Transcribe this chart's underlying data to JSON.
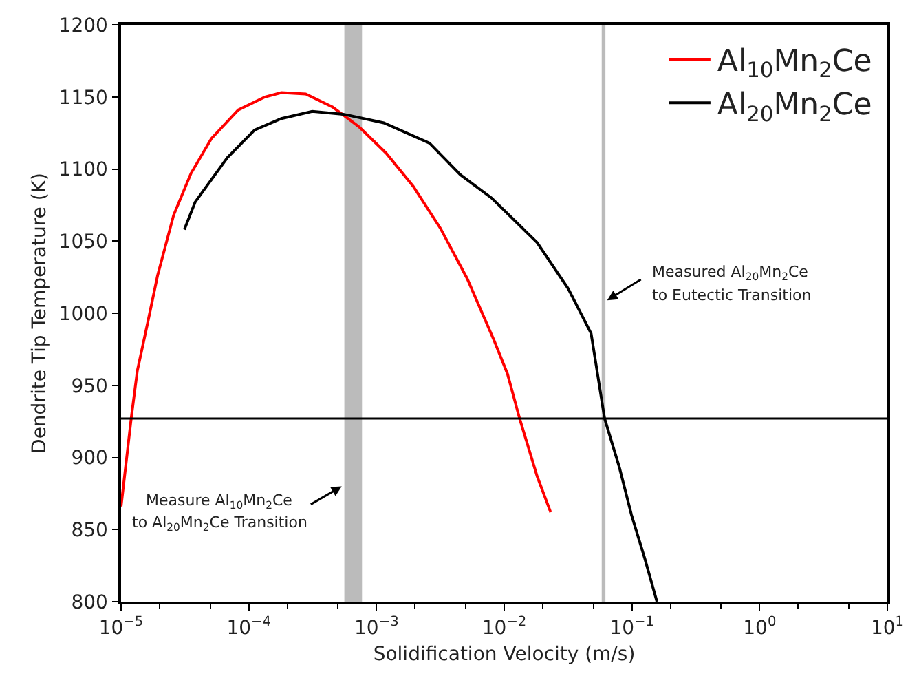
{
  "chart_data": {
    "type": "line",
    "xlabel": "Solidification Velocity (m/s)",
    "ylabel": "Dendrite Tip Temperature (K)",
    "log": "x",
    "xlim": [
      1e-05,
      10
    ],
    "xticks": [
      {
        "value": 1e-05,
        "label": "10$^{−5}$"
      },
      {
        "value": 0.0001,
        "label": "10$^{−4}$"
      },
      {
        "value": 0.001,
        "label": "10$^{−3}$"
      },
      {
        "value": 0.01,
        "label": "10$^{−2}$"
      },
      {
        "value": 0.1,
        "label": "10$^{−1}$"
      },
      {
        "value": 1,
        "label": "10$^{0}$"
      },
      {
        "value": 10,
        "label": "10$^{1}$"
      }
    ],
    "ylim": [
      800,
      1200
    ],
    "yticks": [
      800,
      850,
      900,
      950,
      1000,
      1050,
      1100,
      1150,
      1200
    ],
    "grid": false,
    "legend": "top right",
    "series": [
      {
        "name": "Al$_{10}$Mn$_{2}$Ce",
        "color": "#ff0000",
        "x": [
          1e-05,
          1.2e-05,
          1.34e-05,
          1.63e-05,
          1.93e-05,
          2.58e-05,
          3.53e-05,
          5.09e-05,
          8.27e-05,
          0.000134,
          0.00018,
          0.000279,
          0.000453,
          0.000735,
          0.00119,
          0.00194,
          0.00316,
          0.00513,
          0.00834,
          0.0106,
          0.0132,
          0.0181,
          0.0231
        ],
        "values": [
          866,
          927,
          960,
          995,
          1026,
          1068,
          1097,
          1121,
          1141,
          1150,
          1153,
          1152,
          1143,
          1129,
          1111,
          1088,
          1059,
          1024,
          981,
          958,
          927,
          887,
          862
        ]
      },
      {
        "name": "Al$_{20}$Mn$_{2}$Ce",
        "color": "#000000",
        "x": [
          3.13e-05,
          3.8e-05,
          6.81e-05,
          0.000111,
          0.00018,
          0.000314,
          0.00055,
          0.00114,
          0.0026,
          0.00454,
          0.00794,
          0.0181,
          0.0317,
          0.0479,
          0.0611,
          0.0798,
          0.0993,
          0.126,
          0.157
        ],
        "values": [
          1058,
          1077,
          1108,
          1127,
          1135,
          1140,
          1138,
          1132,
          1118,
          1096,
          1080,
          1049,
          1017,
          986,
          927,
          893,
          860,
          830,
          800
        ]
      }
    ],
    "ref_lines": [
      {
        "axis": "y",
        "value": 927,
        "color": "#000000"
      }
    ],
    "bands": [
      {
        "axis": "x",
        "from": 0.00056,
        "to": 0.00077,
        "color": "#bbbbbb"
      },
      {
        "axis": "x",
        "from": 0.058,
        "to": 0.062,
        "color": "#bbbbbb"
      }
    ],
    "annotations": [
      {
        "text": "Measured Al$_{20}$Mn$_{2}$Ce\nto Eutectic Transition",
        "x": 0.064,
        "y": 1009
      },
      "Measure Al$_{10}$Mn$_{2}$Ce\nto Al$_{20}$Mn$_{2}$Ce Transition"
    ]
  }
}
